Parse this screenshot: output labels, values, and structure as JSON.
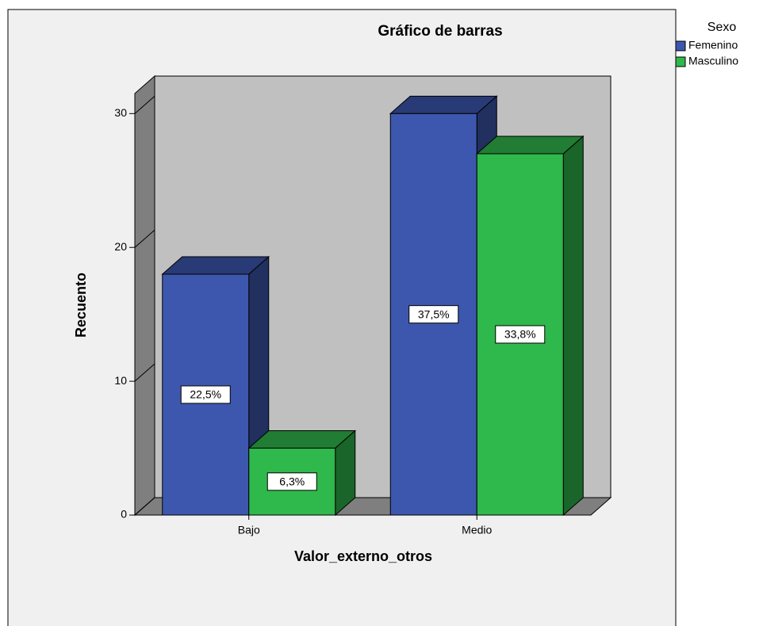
{
  "chart_data": {
    "type": "bar3d",
    "title": "Gráfico de barras",
    "x_label": "Valor_externo_otros",
    "y_label": "Recuento",
    "legend_title": "Sexo",
    "categories": [
      "Bajo",
      "Medio"
    ],
    "series": [
      {
        "name": "Femenino",
        "color": "#3c57ad",
        "values": [
          18,
          30
        ],
        "labels": [
          "22,5%",
          "37,5%"
        ]
      },
      {
        "name": "Masculino",
        "color": "#2fb84b",
        "values": [
          5,
          27
        ],
        "labels": [
          "6,3%",
          "33,8%"
        ]
      }
    ],
    "ylim": [
      0,
      31.5
    ],
    "yticks": [
      0,
      10,
      20,
      30
    ]
  }
}
